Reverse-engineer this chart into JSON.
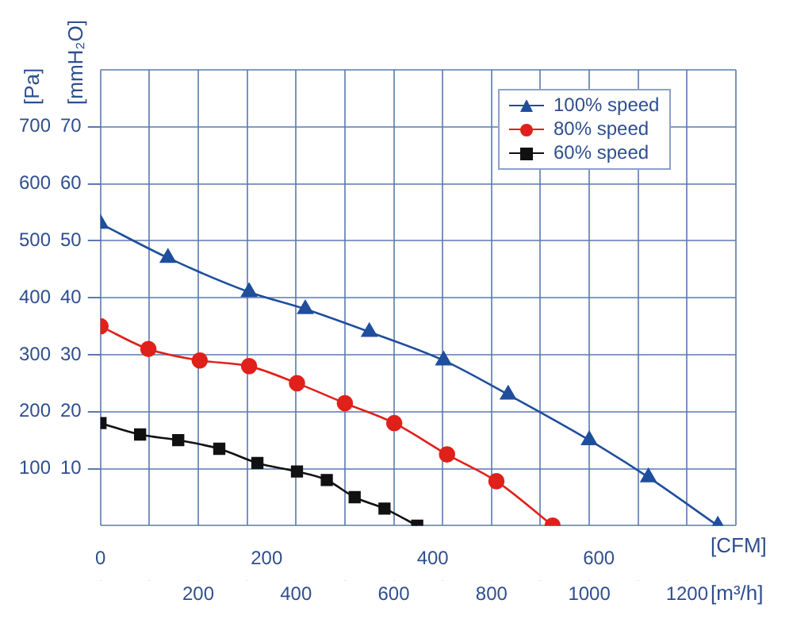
{
  "chart_data": {
    "type": "line",
    "xlabel": "[m³/h]",
    "x2label": "[CFM]",
    "ylabel": "[Pa]",
    "y2label": "[mmH₂O]",
    "xlim": [
      0,
      1300
    ],
    "xticks": [
      {
        "value": 0,
        "label": null
      },
      {
        "value": 100,
        "label": null
      },
      200,
      {
        "value": 300,
        "label": null
      },
      400,
      {
        "value": 500,
        "label": null
      },
      600,
      {
        "value": 700,
        "label": null
      },
      800,
      {
        "value": 900,
        "label": null
      },
      1000,
      {
        "value": 1100,
        "label": null
      },
      1200,
      {
        "value": 1300,
        "label": null
      }
    ],
    "x2lim": [
      0,
      765
    ],
    "x2ticks": [
      0,
      200,
      400,
      600
    ],
    "ylim": [
      0,
      800
    ],
    "yticks": [
      {
        "value": 0,
        "label": null
      },
      100,
      200,
      300,
      400,
      500,
      600,
      700,
      {
        "value": 800,
        "label": null
      }
    ],
    "y2lim": [
      0,
      80
    ],
    "y2ticks": [
      10,
      20,
      30,
      40,
      50,
      60,
      70
    ],
    "grid": true,
    "legend": "top right",
    "line_style": "solid",
    "series": [
      {
        "name": "100% speed",
        "color": "#1f4e9c",
        "marker": "triangle",
        "x": [
          0,
          138,
          304,
          419,
          550,
          702,
          834,
          1000,
          1121,
          1263
        ],
        "values": [
          530,
          470,
          410,
          380,
          340,
          290,
          230,
          150,
          85,
          0
        ]
      },
      {
        "name": "80% speed",
        "color": "#e0201b",
        "marker": "circle",
        "x": [
          0,
          98,
          203,
          304,
          402,
          500,
          601,
          709,
          810,
          925
        ],
        "values": [
          350,
          310,
          290,
          280,
          250,
          215,
          180,
          125,
          78,
          0
        ]
      },
      {
        "name": "60% speed",
        "color": "#111111",
        "marker": "square",
        "x": [
          0,
          81,
          159,
          243,
          321,
          402,
          463,
          520,
          581,
          648
        ],
        "values": [
          180,
          160,
          150,
          135,
          110,
          95,
          80,
          50,
          30,
          0
        ]
      }
    ]
  }
}
